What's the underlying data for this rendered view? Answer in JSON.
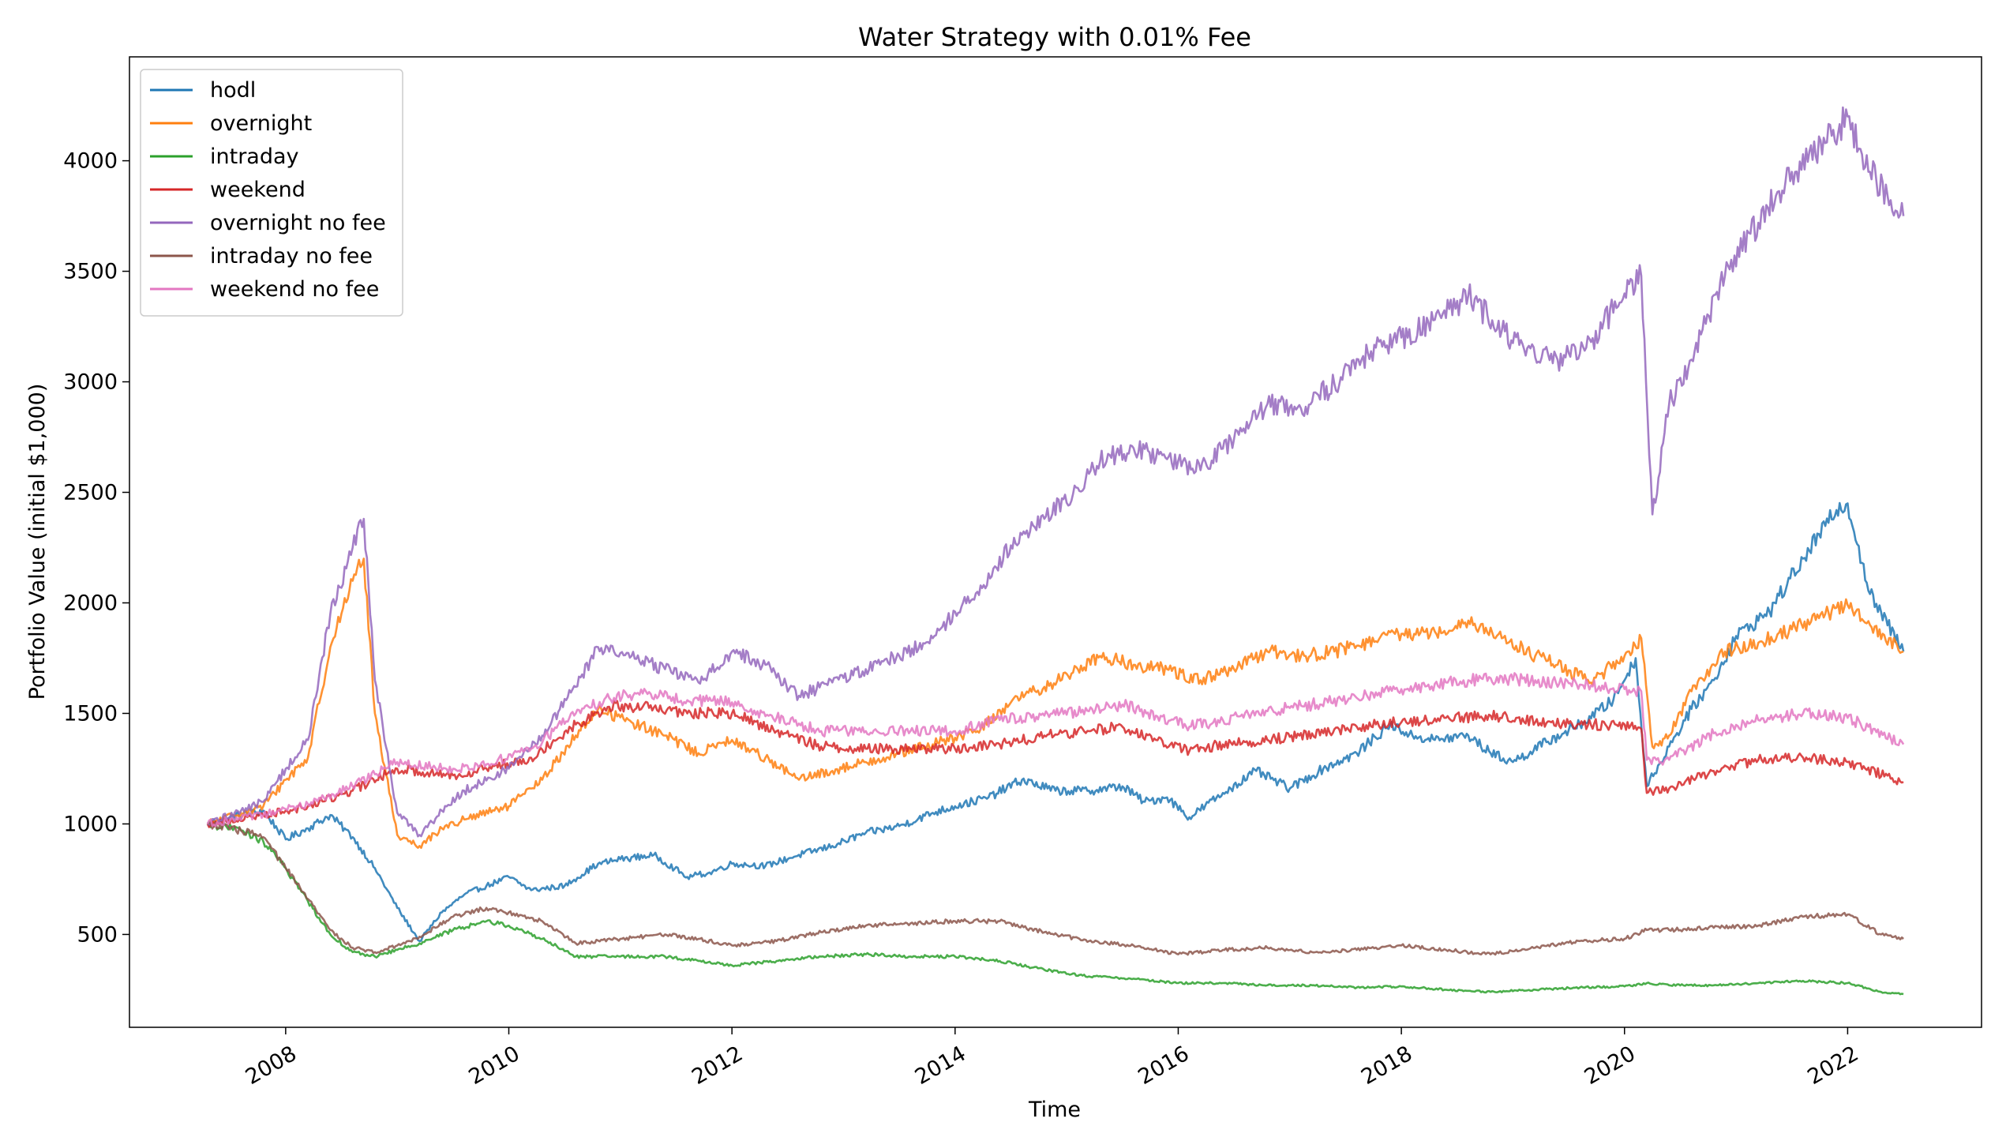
{
  "chart_data": {
    "type": "line",
    "title": "Water Strategy with 0.01% Fee",
    "xlabel": "Time",
    "ylabel": "Portfolio Value (initial $1,000)",
    "xlim": [
      2006.6,
      2023.2
    ],
    "ylim": [
      80,
      4470
    ],
    "x_ticks": [
      2008,
      2010,
      2012,
      2014,
      2016,
      2018,
      2020,
      2022
    ],
    "x_tick_labels": [
      "2008",
      "2010",
      "2012",
      "2014",
      "2016",
      "2018",
      "2020",
      "2022"
    ],
    "y_ticks": [
      500,
      1000,
      1500,
      2000,
      2500,
      3000,
      3500,
      4000
    ],
    "y_tick_labels": [
      "500",
      "1000",
      "1500",
      "2000",
      "2500",
      "3000",
      "3500",
      "4000"
    ],
    "legend_position": "upper-left",
    "series": [
      {
        "name": "hodl",
        "color": "#1f77b4",
        "x": [
          2007.3,
          2007.5,
          2007.8,
          2008.0,
          2008.2,
          2008.4,
          2008.6,
          2008.8,
          2009.0,
          2009.2,
          2009.4,
          2009.6,
          2009.8,
          2010.0,
          2010.2,
          2010.5,
          2010.8,
          2011.0,
          2011.3,
          2011.6,
          2011.8,
          2012.0,
          2012.3,
          2012.6,
          2012.9,
          2013.2,
          2013.5,
          2013.8,
          2014.0,
          2014.3,
          2014.6,
          2014.9,
          2015.2,
          2015.5,
          2015.7,
          2015.9,
          2016.1,
          2016.4,
          2016.7,
          2017.0,
          2017.3,
          2017.6,
          2017.9,
          2018.1,
          2018.3,
          2018.6,
          2018.8,
          2019.0,
          2019.3,
          2019.6,
          2019.9,
          2020.1,
          2020.2,
          2020.4,
          2020.6,
          2020.8,
          2021.0,
          2021.3,
          2021.6,
          2021.9,
          2022.0,
          2022.2,
          2022.5
        ],
        "y": [
          1000,
          1030,
          1060,
          930,
          980,
          1040,
          940,
          800,
          620,
          470,
          600,
          680,
          720,
          760,
          700,
          720,
          820,
          840,
          860,
          760,
          780,
          820,
          810,
          860,
          900,
          960,
          990,
          1050,
          1080,
          1120,
          1200,
          1150,
          1150,
          1170,
          1100,
          1120,
          1030,
          1140,
          1240,
          1160,
          1250,
          1320,
          1450,
          1400,
          1380,
          1400,
          1320,
          1280,
          1370,
          1450,
          1560,
          1750,
          1170,
          1350,
          1520,
          1650,
          1850,
          1960,
          2200,
          2420,
          2450,
          2040,
          1780
        ]
      },
      {
        "name": "overnight",
        "color": "#ff7f0e",
        "x": [
          2007.3,
          2007.6,
          2007.8,
          2008.0,
          2008.2,
          2008.4,
          2008.6,
          2008.7,
          2008.8,
          2009.0,
          2009.2,
          2009.4,
          2009.6,
          2010.0,
          2010.3,
          2010.6,
          2010.8,
          2011.1,
          2011.4,
          2011.7,
          2012.0,
          2012.3,
          2012.6,
          2012.9,
          2013.2,
          2013.5,
          2013.8,
          2014.0,
          2014.2,
          2014.5,
          2014.8,
          2015.1,
          2015.3,
          2015.6,
          2015.9,
          2016.2,
          2016.5,
          2016.8,
          2017.1,
          2017.4,
          2017.7,
          2018.0,
          2018.3,
          2018.6,
          2018.9,
          2019.2,
          2019.4,
          2019.7,
          2020.0,
          2020.15,
          2020.25,
          2020.4,
          2020.6,
          2020.9,
          2021.2,
          2021.5,
          2021.8,
          2022.0,
          2022.2,
          2022.5
        ],
        "y": [
          1000,
          1050,
          1080,
          1200,
          1300,
          1800,
          2100,
          2200,
          1500,
          950,
          900,
          980,
          1020,
          1080,
          1200,
          1400,
          1520,
          1460,
          1400,
          1320,
          1380,
          1300,
          1200,
          1240,
          1280,
          1320,
          1360,
          1390,
          1420,
          1550,
          1620,
          1700,
          1760,
          1720,
          1700,
          1650,
          1700,
          1780,
          1760,
          1780,
          1820,
          1860,
          1870,
          1920,
          1840,
          1760,
          1720,
          1640,
          1760,
          1840,
          1350,
          1400,
          1600,
          1780,
          1820,
          1880,
          1950,
          1990,
          1900,
          1780
        ]
      },
      {
        "name": "intraday",
        "color": "#2ca02c",
        "x": [
          2007.3,
          2007.6,
          2007.8,
          2008.0,
          2008.2,
          2008.4,
          2008.6,
          2008.8,
          2009.0,
          2009.2,
          2009.5,
          2009.8,
          2010.0,
          2010.3,
          2010.6,
          2011.0,
          2011.4,
          2011.7,
          2012.0,
          2012.4,
          2012.8,
          2013.2,
          2013.6,
          2014.0,
          2014.4,
          2014.8,
          2015.2,
          2015.6,
          2016.0,
          2016.4,
          2016.8,
          2017.2,
          2017.6,
          2018.0,
          2018.4,
          2018.8,
          2019.2,
          2019.6,
          2020.0,
          2020.2,
          2020.4,
          2020.8,
          2021.2,
          2021.6,
          2022.0,
          2022.3,
          2022.5
        ],
        "y": [
          1000,
          970,
          920,
          800,
          650,
          500,
          420,
          400,
          430,
          460,
          520,
          560,
          540,
          480,
          400,
          400,
          400,
          380,
          360,
          380,
          400,
          410,
          400,
          400,
          380,
          340,
          310,
          300,
          280,
          280,
          270,
          270,
          260,
          265,
          250,
          240,
          250,
          260,
          265,
          280,
          270,
          270,
          280,
          290,
          280,
          240,
          230
        ]
      },
      {
        "name": "weekend",
        "color": "#d62728",
        "x": [
          2007.3,
          2007.8,
          2008.2,
          2008.6,
          2009.0,
          2009.5,
          2009.8,
          2010.2,
          2010.6,
          2010.9,
          2011.2,
          2011.6,
          2012.0,
          2012.4,
          2012.8,
          2013.2,
          2013.6,
          2014.0,
          2014.4,
          2014.8,
          2015.2,
          2015.5,
          2015.8,
          2016.1,
          2016.4,
          2016.8,
          2017.2,
          2017.6,
          2018.0,
          2018.4,
          2018.8,
          2019.2,
          2019.6,
          2020.0,
          2020.15,
          2020.2,
          2020.4,
          2020.8,
          2021.2,
          2021.6,
          2022.0,
          2022.5
        ],
        "y": [
          1000,
          1040,
          1080,
          1150,
          1250,
          1220,
          1250,
          1300,
          1450,
          1530,
          1530,
          1500,
          1500,
          1420,
          1350,
          1340,
          1340,
          1340,
          1360,
          1400,
          1420,
          1440,
          1380,
          1330,
          1360,
          1380,
          1410,
          1440,
          1460,
          1480,
          1490,
          1460,
          1450,
          1450,
          1430,
          1140,
          1160,
          1240,
          1290,
          1300,
          1280,
          1190
        ]
      },
      {
        "name": "overnight no fee",
        "color": "#9467bd",
        "x": [
          2007.3,
          2007.6,
          2007.8,
          2008.0,
          2008.2,
          2008.4,
          2008.6,
          2008.7,
          2008.8,
          2009.0,
          2009.2,
          2009.4,
          2009.6,
          2010.0,
          2010.3,
          2010.6,
          2010.8,
          2011.1,
          2011.4,
          2011.7,
          2012.0,
          2012.3,
          2012.6,
          2012.9,
          2013.2,
          2013.5,
          2013.8,
          2014.0,
          2014.2,
          2014.5,
          2014.8,
          2015.1,
          2015.3,
          2015.6,
          2015.9,
          2016.2,
          2016.5,
          2016.8,
          2017.1,
          2017.4,
          2017.7,
          2018.0,
          2018.3,
          2018.6,
          2018.9,
          2019.2,
          2019.4,
          2019.7,
          2020.0,
          2020.15,
          2020.25,
          2020.4,
          2020.6,
          2020.9,
          2021.2,
          2021.5,
          2021.8,
          2022.0,
          2022.2,
          2022.5
        ],
        "y": [
          1000,
          1060,
          1100,
          1250,
          1380,
          1950,
          2250,
          2380,
          1650,
          1050,
          950,
          1060,
          1150,
          1250,
          1400,
          1620,
          1800,
          1760,
          1700,
          1640,
          1780,
          1720,
          1580,
          1640,
          1700,
          1760,
          1840,
          1960,
          2050,
          2260,
          2380,
          2520,
          2640,
          2700,
          2650,
          2600,
          2740,
          2900,
          2880,
          2990,
          3130,
          3200,
          3280,
          3390,
          3230,
          3110,
          3100,
          3180,
          3400,
          3480,
          2400,
          2900,
          3100,
          3480,
          3720,
          3950,
          4080,
          4200,
          3950,
          3750
        ]
      },
      {
        "name": "intraday no fee",
        "color": "#8c564b",
        "x": [
          2007.3,
          2007.6,
          2007.8,
          2008.0,
          2008.2,
          2008.4,
          2008.6,
          2008.8,
          2009.0,
          2009.2,
          2009.5,
          2009.8,
          2010.0,
          2010.3,
          2010.6,
          2011.0,
          2011.4,
          2011.7,
          2012.0,
          2012.4,
          2012.8,
          2013.2,
          2013.6,
          2014.0,
          2014.4,
          2014.8,
          2015.2,
          2015.6,
          2016.0,
          2016.4,
          2016.8,
          2017.2,
          2017.6,
          2018.0,
          2018.4,
          2018.8,
          2019.2,
          2019.6,
          2020.0,
          2020.2,
          2020.4,
          2020.8,
          2021.2,
          2021.6,
          2022.0,
          2022.3,
          2022.5
        ],
        "y": [
          1000,
          970,
          940,
          800,
          660,
          520,
          440,
          420,
          450,
          490,
          580,
          620,
          600,
          560,
          460,
          480,
          500,
          480,
          450,
          470,
          510,
          540,
          550,
          560,
          560,
          510,
          470,
          450,
          410,
          430,
          440,
          420,
          430,
          450,
          430,
          410,
          440,
          470,
          480,
          520,
          520,
          530,
          540,
          580,
          590,
          500,
          480
        ]
      },
      {
        "name": "weekend no fee",
        "color": "#e377c2",
        "x": [
          2007.3,
          2007.8,
          2008.2,
          2008.6,
          2009.0,
          2009.5,
          2009.8,
          2010.2,
          2010.6,
          2010.9,
          2011.2,
          2011.6,
          2012.0,
          2012.4,
          2012.8,
          2013.2,
          2013.6,
          2014.0,
          2014.4,
          2014.8,
          2015.2,
          2015.5,
          2015.8,
          2016.1,
          2016.4,
          2016.8,
          2017.2,
          2017.6,
          2018.0,
          2018.4,
          2018.8,
          2019.2,
          2019.6,
          2020.0,
          2020.15,
          2020.2,
          2020.4,
          2020.8,
          2021.2,
          2021.6,
          2022.0,
          2022.5
        ],
        "y": [
          1000,
          1040,
          1090,
          1170,
          1280,
          1250,
          1270,
          1340,
          1500,
          1570,
          1590,
          1560,
          1550,
          1480,
          1420,
          1420,
          1420,
          1420,
          1470,
          1490,
          1510,
          1540,
          1490,
          1440,
          1470,
          1510,
          1540,
          1570,
          1610,
          1640,
          1660,
          1650,
          1630,
          1610,
          1600,
          1290,
          1290,
          1410,
          1470,
          1500,
          1480,
          1360
        ]
      }
    ]
  }
}
